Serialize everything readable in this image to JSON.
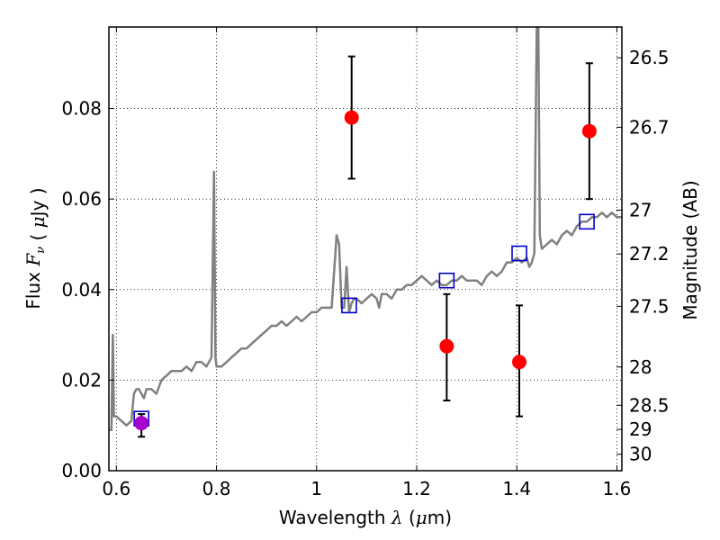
{
  "chart_data": {
    "type": "scatter",
    "xlabel": {
      "prefix": "Wavelength",
      "math": "λ",
      "unit_open": "(",
      "unit_math": "μ",
      "unit_rest": "m)"
    },
    "ylabel": {
      "prefix": "Flux",
      "math": "F",
      "sub": "ν",
      "unit_open": "(",
      "unit_math": "μ",
      "unit_rest": "Jy )"
    },
    "y2label": "Magnitude (AB)",
    "xlim": [
      0.585,
      1.61
    ],
    "ylim": [
      0.0,
      0.098
    ],
    "grid": true,
    "xticks": [
      {
        "value": 0.6,
        "label": "0.6"
      },
      {
        "value": 0.8,
        "label": "0.8"
      },
      {
        "value": 1.0,
        "label": "1"
      },
      {
        "value": 1.2,
        "label": "1.2"
      },
      {
        "value": 1.4,
        "label": "1.4"
      },
      {
        "value": 1.6,
        "label": "1.6"
      }
    ],
    "yticks": [
      {
        "value": 0.0,
        "label": "0.00"
      },
      {
        "value": 0.02,
        "label": "0.02"
      },
      {
        "value": 0.04,
        "label": "0.04"
      },
      {
        "value": 0.06,
        "label": "0.06"
      },
      {
        "value": 0.08,
        "label": "0.08"
      }
    ],
    "y2ticks": [
      {
        "mag": 26.5,
        "label": "26.5"
      },
      {
        "mag": 26.7,
        "label": "26.7"
      },
      {
        "mag": 27.0,
        "label": "27"
      },
      {
        "mag": 27.2,
        "label": "27.2"
      },
      {
        "mag": 27.5,
        "label": "27.5"
      },
      {
        "mag": 28.0,
        "label": "28"
      },
      {
        "mag": 28.5,
        "label": "28.5"
      },
      {
        "mag": 29.0,
        "label": "29"
      },
      {
        "mag": 30.0,
        "label": "30"
      }
    ],
    "series": [
      {
        "kind": "model_spectrum",
        "color": "#808080",
        "x": [
          0.585,
          0.59,
          0.593,
          0.595,
          0.6,
          0.61,
          0.62,
          0.63,
          0.635,
          0.64,
          0.645,
          0.65,
          0.655,
          0.66,
          0.67,
          0.68,
          0.69,
          0.7,
          0.71,
          0.72,
          0.73,
          0.74,
          0.75,
          0.76,
          0.77,
          0.78,
          0.79,
          0.795,
          0.798,
          0.8,
          0.805,
          0.81,
          0.82,
          0.83,
          0.84,
          0.85,
          0.86,
          0.87,
          0.88,
          0.89,
          0.9,
          0.91,
          0.92,
          0.93,
          0.94,
          0.95,
          0.96,
          0.97,
          0.98,
          0.99,
          1.0,
          1.01,
          1.02,
          1.03,
          1.04,
          1.045,
          1.05,
          1.055,
          1.06,
          1.065,
          1.07,
          1.075,
          1.08,
          1.09,
          1.1,
          1.11,
          1.12,
          1.125,
          1.13,
          1.14,
          1.15,
          1.16,
          1.17,
          1.18,
          1.19,
          1.2,
          1.21,
          1.22,
          1.23,
          1.24,
          1.25,
          1.26,
          1.27,
          1.28,
          1.29,
          1.3,
          1.31,
          1.32,
          1.33,
          1.34,
          1.35,
          1.36,
          1.37,
          1.38,
          1.39,
          1.4,
          1.41,
          1.42,
          1.425,
          1.43,
          1.435,
          1.44,
          1.443,
          1.446,
          1.45,
          1.46,
          1.47,
          1.48,
          1.49,
          1.5,
          1.51,
          1.52,
          1.53,
          1.54,
          1.55,
          1.56,
          1.57,
          1.58,
          1.59,
          1.6,
          1.61
        ],
        "y": [
          0.009,
          0.009,
          0.03,
          0.012,
          0.012,
          0.011,
          0.01,
          0.011,
          0.017,
          0.018,
          0.018,
          0.017,
          0.016,
          0.018,
          0.018,
          0.017,
          0.02,
          0.021,
          0.022,
          0.022,
          0.022,
          0.023,
          0.022,
          0.024,
          0.024,
          0.023,
          0.025,
          0.066,
          0.025,
          0.023,
          0.023,
          0.023,
          0.024,
          0.025,
          0.026,
          0.027,
          0.027,
          0.028,
          0.029,
          0.03,
          0.031,
          0.032,
          0.032,
          0.033,
          0.032,
          0.033,
          0.034,
          0.033,
          0.034,
          0.035,
          0.035,
          0.036,
          0.036,
          0.036,
          0.052,
          0.05,
          0.036,
          0.036,
          0.045,
          0.035,
          0.037,
          0.038,
          0.038,
          0.037,
          0.038,
          0.039,
          0.038,
          0.036,
          0.039,
          0.039,
          0.038,
          0.04,
          0.04,
          0.041,
          0.041,
          0.042,
          0.043,
          0.042,
          0.041,
          0.042,
          0.041,
          0.041,
          0.042,
          0.042,
          0.043,
          0.042,
          0.042,
          0.042,
          0.041,
          0.043,
          0.044,
          0.043,
          0.044,
          0.046,
          0.046,
          0.047,
          0.046,
          0.047,
          0.045,
          0.046,
          0.048,
          0.1,
          0.1,
          0.052,
          0.049,
          0.05,
          0.051,
          0.05,
          0.052,
          0.053,
          0.052,
          0.054,
          0.055,
          0.055,
          0.056,
          0.056,
          0.057,
          0.056,
          0.057,
          0.056,
          0.056
        ]
      },
      {
        "kind": "model_photometry",
        "marker": "open-square",
        "color": "#0000cc",
        "x": [
          0.65,
          1.065,
          1.26,
          1.405,
          1.54
        ],
        "y": [
          0.0115,
          0.0365,
          0.042,
          0.048,
          0.055
        ]
      },
      {
        "kind": "observed_photometry",
        "marker": "filled-circle",
        "color": "#ff0000",
        "x": [
          1.07,
          1.26,
          1.405,
          1.545
        ],
        "y": [
          0.078,
          0.0275,
          0.024,
          0.075
        ],
        "yerr_low": [
          0.0645,
          0.0155,
          0.012,
          0.06
        ],
        "yerr_high": [
          0.0915,
          0.039,
          0.0365,
          0.09
        ]
      },
      {
        "kind": "observed_photometry_optical",
        "marker": "filled-circle",
        "color": "#aa00cc",
        "x": [
          0.65
        ],
        "y": [
          0.0105
        ],
        "yerr_low": [
          0.0075
        ],
        "yerr_high": [
          0.0125
        ]
      }
    ]
  }
}
